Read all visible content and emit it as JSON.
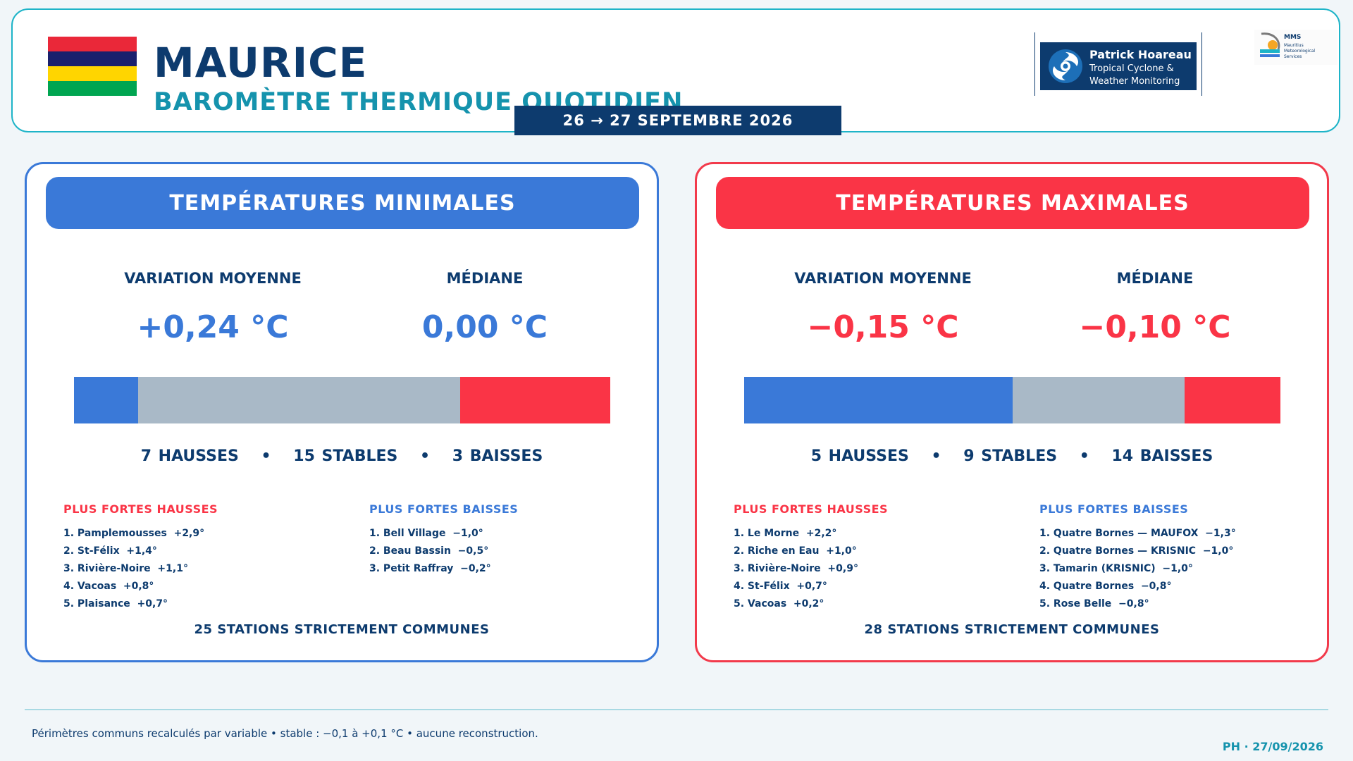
{
  "header": {
    "title": "MAURICE",
    "subtitle": "BAROMÈTRE THERMIQUE QUOTIDIEN",
    "date_range": "26 → 27 SEPTEMBRE 2026",
    "flag_colors": [
      "#ea2839",
      "#1a206d",
      "#ffd500",
      "#00a551"
    ],
    "ph_logo": {
      "name": "Patrick Hoareau",
      "tagline_line1": "Tropical Cyclone &",
      "tagline_line2": "Weather Monitoring",
      "icon": "cyclone-icon"
    },
    "mms_logo": {
      "short": "MMS",
      "line1": "Mauritius",
      "line2": "Meteorological",
      "line3": "Services",
      "icon": "mms-emblem-icon"
    }
  },
  "colors": {
    "navy": "#0d3b6e",
    "teal": "#1593ad",
    "blue": "#3a79d8",
    "red": "#fa3446",
    "stable_gray": "#a9b9c7"
  },
  "min_panel": {
    "heading": "TEMPÉRATURES MINIMALES",
    "variation_label": "VARIATION MOYENNE",
    "variation_value": "+0,24 °C",
    "median_label": "MÉDIANE",
    "median_value": "0,00 °C",
    "bar": {
      "blue": 3,
      "gray": 15,
      "red": 7
    },
    "hausses_text": "7 HAUSSES",
    "stables_text": "15 STABLES",
    "baisses_text": "3 BAISSES",
    "separator": "•",
    "up_title": "PLUS FORTES HAUSSES",
    "up_list": [
      "1. Pamplemousses  +2,9°",
      "2. St-Félix  +1,4°",
      "3. Rivière-Noire  +1,1°",
      "4. Vacoas  +0,8°",
      "5. Plaisance  +0,7°"
    ],
    "down_title": "PLUS FORTES BAISSES",
    "down_list": [
      "1. Bell Village  −1,0°",
      "2. Beau Bassin  −0,5°",
      "3. Petit Raffray  −0,2°"
    ],
    "stations": "25 STATIONS STRICTEMENT COMMUNES"
  },
  "max_panel": {
    "heading": "TEMPÉRATURES MAXIMALES",
    "variation_label": "VARIATION MOYENNE",
    "variation_value": "−0,15 °C",
    "median_label": "MÉDIANE",
    "median_value": "−0,10 °C",
    "bar": {
      "blue": 14,
      "gray": 9,
      "red": 5
    },
    "hausses_text": "5 HAUSSES",
    "stables_text": "9 STABLES",
    "baisses_text": "14 BAISSES",
    "separator": "•",
    "up_title": "PLUS FORTES HAUSSES",
    "up_list": [
      "1. Le Morne  +2,2°",
      "2. Riche en Eau  +1,0°",
      "3. Rivière-Noire  +0,9°",
      "4. St-Félix  +0,7°",
      "5. Vacoas  +0,2°"
    ],
    "down_title": "PLUS FORTES BAISSES",
    "down_list": [
      "1. Quatre Bornes — MAUFOX  −1,3°",
      "2. Quatre Bornes — KRISNIC  −1,0°",
      "3. Tamarin (KRISNIC)  −1,0°",
      "4. Quatre Bornes  −0,8°",
      "5. Rose Belle  −0,8°"
    ],
    "stations": "28 STATIONS STRICTEMENT COMMUNES"
  },
  "footer": {
    "note": "Périmètres communs recalculés par variable • stable : −0,1 à +0,1 °C • aucune reconstruction.",
    "signature": "PH · 27/09/2026"
  }
}
